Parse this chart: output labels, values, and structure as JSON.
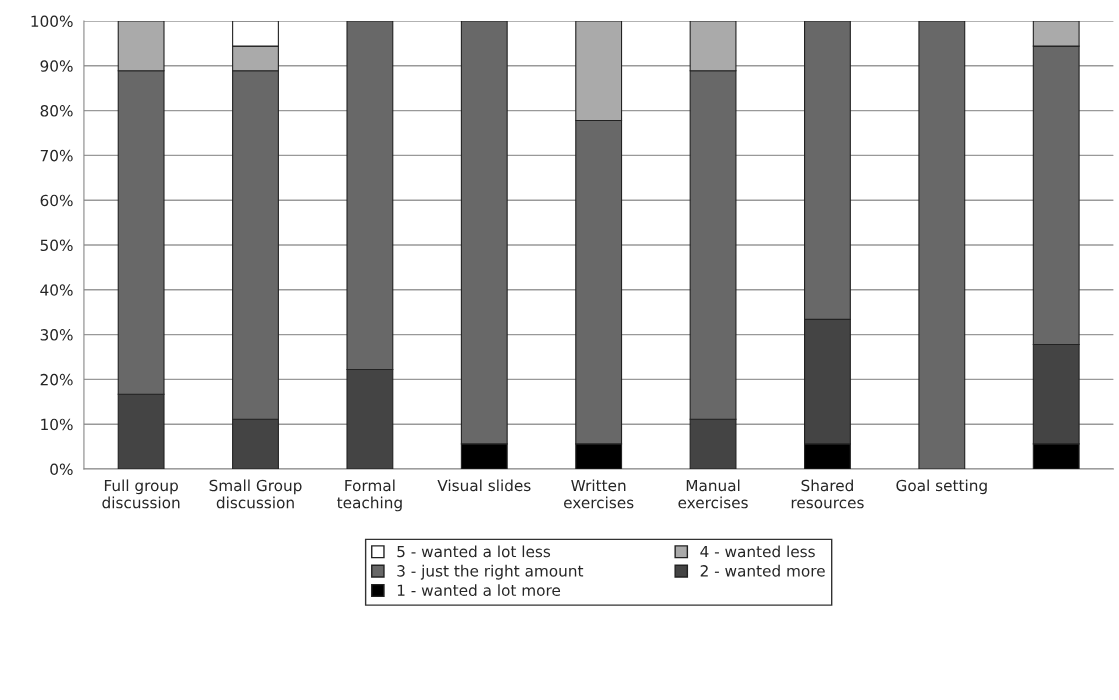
{
  "chart_data": {
    "type": "bar",
    "stacked": true,
    "categories": [
      "Full group\ndiscussion",
      "Small Group\ndiscussion",
      "Formal\nteaching",
      "Visual slides",
      "Written\nexercises",
      "Manual\nexercises",
      "Shared\nresources",
      "Goal setting",
      null
    ],
    "series": [
      {
        "name": "1 - wanted a lot more",
        "color": "#000000",
        "values": [
          0,
          0,
          0,
          5.6,
          5.6,
          0,
          5.6,
          0,
          5.6
        ]
      },
      {
        "name": "2 - wanted more",
        "color": "#444444",
        "values": [
          16.7,
          11.1,
          22.2,
          0,
          0,
          11.1,
          27.8,
          0,
          22.2
        ]
      },
      {
        "name": "3 - just the right amount",
        "color": "#686868",
        "values": [
          72.2,
          77.8,
          77.8,
          94.4,
          72.2,
          77.8,
          66.6,
          100,
          66.6
        ]
      },
      {
        "name": "4 - wanted less",
        "color": "#aaaaaa",
        "values": [
          11.1,
          5.5,
          0,
          0,
          22.2,
          11.1,
          0,
          0,
          5.6
        ]
      },
      {
        "name": "5 - wanted a lot less",
        "color": "#ffffff",
        "values": [
          0,
          5.6,
          0,
          0,
          0,
          0,
          0,
          0,
          0
        ]
      }
    ],
    "ylim": [
      0,
      100
    ],
    "yticks": [
      {
        "value": 0,
        "label": "0%"
      },
      {
        "value": 10,
        "label": "10%"
      },
      {
        "value": 20,
        "label": "20%"
      },
      {
        "value": 30,
        "label": "30%"
      },
      {
        "value": 40,
        "label": "40%"
      },
      {
        "value": 50,
        "label": "50%"
      },
      {
        "value": 60,
        "label": "60%"
      },
      {
        "value": 70,
        "label": "70%"
      },
      {
        "value": 80,
        "label": "80%"
      },
      {
        "value": 90,
        "label": "90%"
      },
      {
        "value": 100,
        "label": "100%"
      }
    ],
    "grid": "y",
    "legend": "bottom"
  }
}
